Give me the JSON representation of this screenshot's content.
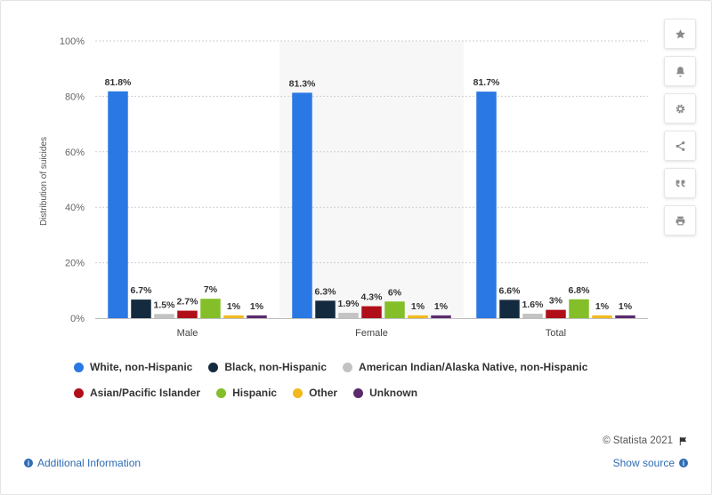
{
  "chart_data": {
    "type": "bar",
    "title": "",
    "xlabel": "",
    "ylabel": "Distribution of suicides",
    "ylim": [
      0,
      100
    ],
    "yticks": [
      "0%",
      "20%",
      "40%",
      "60%",
      "80%",
      "100%"
    ],
    "categories": [
      "Male",
      "Female",
      "Total"
    ],
    "highlighted_category": "Female",
    "series": [
      {
        "name": "White, non-Hispanic",
        "color": "#2a78e4",
        "values": [
          81.8,
          81.3,
          81.7
        ],
        "labels": [
          "81.8%",
          "81.3%",
          "81.7%"
        ]
      },
      {
        "name": "Black, non-Hispanic",
        "color": "#142a3f",
        "values": [
          6.7,
          6.3,
          6.6
        ],
        "labels": [
          "6.7%",
          "6.3%",
          "6.6%"
        ]
      },
      {
        "name": "American Indian/Alaska Native, non-Hispanic",
        "color": "#c3c3c3",
        "values": [
          1.5,
          1.9,
          1.6
        ],
        "labels": [
          "1.5%",
          "1.9%",
          "1.6%"
        ]
      },
      {
        "name": "Asian/Pacific Islander",
        "color": "#b00f19",
        "values": [
          2.7,
          4.3,
          3
        ],
        "labels": [
          "2.7%",
          "4.3%",
          "3%"
        ]
      },
      {
        "name": "Hispanic",
        "color": "#84bf2a",
        "values": [
          7,
          6,
          6.8
        ],
        "labels": [
          "7%",
          "6%",
          "6.8%"
        ]
      },
      {
        "name": "Other",
        "color": "#f2b81e",
        "values": [
          1,
          1,
          1
        ],
        "labels": [
          "1%",
          "1%",
          "1%"
        ]
      },
      {
        "name": "Unknown",
        "color": "#5b2a6d",
        "values": [
          1,
          1,
          1
        ],
        "labels": [
          "1%",
          "1%",
          "1%"
        ]
      }
    ],
    "grid": true,
    "legend_position": "bottom"
  },
  "toolbar": {
    "buttons": [
      {
        "name": "star",
        "icon": "star-icon"
      },
      {
        "name": "bell",
        "icon": "bell-icon"
      },
      {
        "name": "gear",
        "icon": "gear-icon"
      },
      {
        "name": "share",
        "icon": "share-icon"
      },
      {
        "name": "quote",
        "icon": "quote-icon"
      },
      {
        "name": "print",
        "icon": "print-icon"
      }
    ]
  },
  "footer": {
    "credit": "© Statista 2021",
    "additional_info": "Additional Information",
    "show_source": "Show source"
  }
}
